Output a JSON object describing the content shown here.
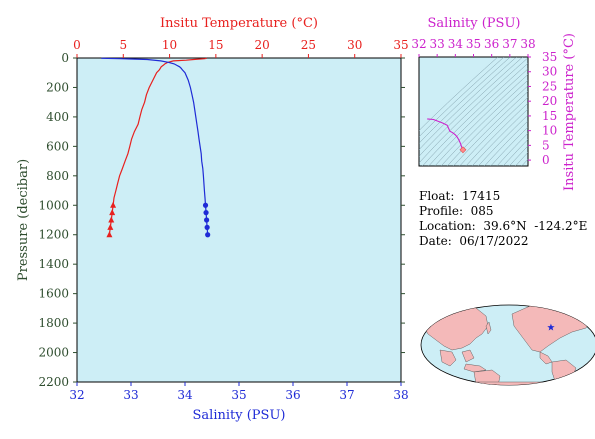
{
  "float_info": {
    "float_line": "Float:  17415",
    "profile_line": "Profile:  085",
    "location_line": "Location:  39.6°N  -124.2°E",
    "date_line": "Date:  06/17/2022"
  },
  "colors": {
    "plot_bg": "#cdeef6",
    "temperature": "#e8201e",
    "salinity": "#1f2bd6",
    "pressure_axis": "#2e4d2e",
    "ts_axis": "#cc22cc",
    "land": "#f4b9b9",
    "ocean": "#cdeef6"
  },
  "chart_data": [
    {
      "type": "line",
      "name": "profile",
      "title": "",
      "xlabel_top": "Insitu Temperature (°C)",
      "xlabel_bottom": "Salinity (PSU)",
      "ylabel": "Pressure (decibar)",
      "temperature_xlim": [
        0,
        35
      ],
      "temperature_ticks": [
        "0",
        "5",
        "10",
        "15",
        "20",
        "25",
        "30",
        "35"
      ],
      "salinity_xlim": [
        32,
        38
      ],
      "salinity_ticks": [
        "32",
        "33",
        "34",
        "35",
        "36",
        "37",
        "38"
      ],
      "pressure_ylim": [
        2200,
        0
      ],
      "pressure_ticks": [
        "0",
        "200",
        "400",
        "600",
        "800",
        "1000",
        "1200",
        "1400",
        "1600",
        "1800",
        "2000",
        "2200"
      ],
      "grid": false,
      "series": [
        {
          "variable": "temperature",
          "pressure": [
            2,
            5,
            10,
            15,
            20,
            30,
            40,
            50,
            60,
            70,
            80,
            100,
            150,
            200,
            250,
            300,
            350,
            400,
            450,
            500,
            550,
            600,
            650,
            700,
            750,
            800,
            850,
            900,
            950,
            1000,
            1050,
            1100,
            1150,
            1200
          ],
          "values": [
            14.0,
            13.8,
            12.6,
            11.8,
            10.4,
            9.8,
            9.5,
            9.3,
            9.1,
            9.0,
            8.9,
            8.6,
            8.2,
            7.8,
            7.5,
            7.3,
            7.0,
            6.8,
            6.6,
            6.2,
            5.9,
            5.7,
            5.5,
            5.2,
            4.9,
            4.6,
            4.4,
            4.2,
            4.0,
            3.9,
            3.8,
            3.7,
            3.6,
            3.5
          ],
          "markers_at_pressure": [
            1000,
            1050,
            1100,
            1150,
            1200
          ]
        },
        {
          "variable": "salinity",
          "pressure": [
            2,
            5,
            10,
            20,
            30,
            40,
            50,
            60,
            70,
            80,
            100,
            150,
            200,
            250,
            300,
            350,
            400,
            450,
            500,
            550,
            600,
            650,
            700,
            750,
            800,
            850,
            900,
            950,
            1000,
            1050,
            1100,
            1150,
            1200
          ],
          "values": [
            32.45,
            32.8,
            33.3,
            33.55,
            33.7,
            33.8,
            33.85,
            33.9,
            33.93,
            33.95,
            34.0,
            34.06,
            34.1,
            34.13,
            34.16,
            34.18,
            34.2,
            34.22,
            34.24,
            34.26,
            34.28,
            34.3,
            34.31,
            34.33,
            34.34,
            34.35,
            34.36,
            34.37,
            34.38,
            34.39,
            34.4,
            34.41,
            34.42
          ],
          "markers_at_pressure": [
            1000,
            1050,
            1100,
            1150,
            1200
          ]
        }
      ]
    },
    {
      "type": "scatter",
      "name": "ts_diagram",
      "title": "",
      "xlabel": "Salinity (PSU)",
      "ylabel": "Insitu Temperature (°C)",
      "xlim": [
        32,
        38
      ],
      "ylim": [
        -2,
        35
      ],
      "x_ticks": [
        "32",
        "33",
        "34",
        "35",
        "36",
        "37",
        "38"
      ],
      "y_ticks": [
        "0",
        "5",
        "10",
        "15",
        "20",
        "25",
        "30",
        "35"
      ],
      "salinity": [
        32.45,
        32.8,
        33.3,
        33.55,
        33.7,
        33.85,
        34.0,
        34.1,
        34.2,
        34.28,
        34.34,
        34.38,
        34.42
      ],
      "temperature": [
        14.0,
        13.8,
        12.6,
        11.8,
        9.8,
        9.3,
        8.6,
        7.8,
        6.8,
        5.7,
        4.6,
        3.9,
        3.5
      ],
      "end_marker": "diamond"
    },
    {
      "type": "map",
      "name": "location_map",
      "marker": {
        "lat": 39.6,
        "lon": -124.2,
        "symbol": "star"
      }
    }
  ]
}
